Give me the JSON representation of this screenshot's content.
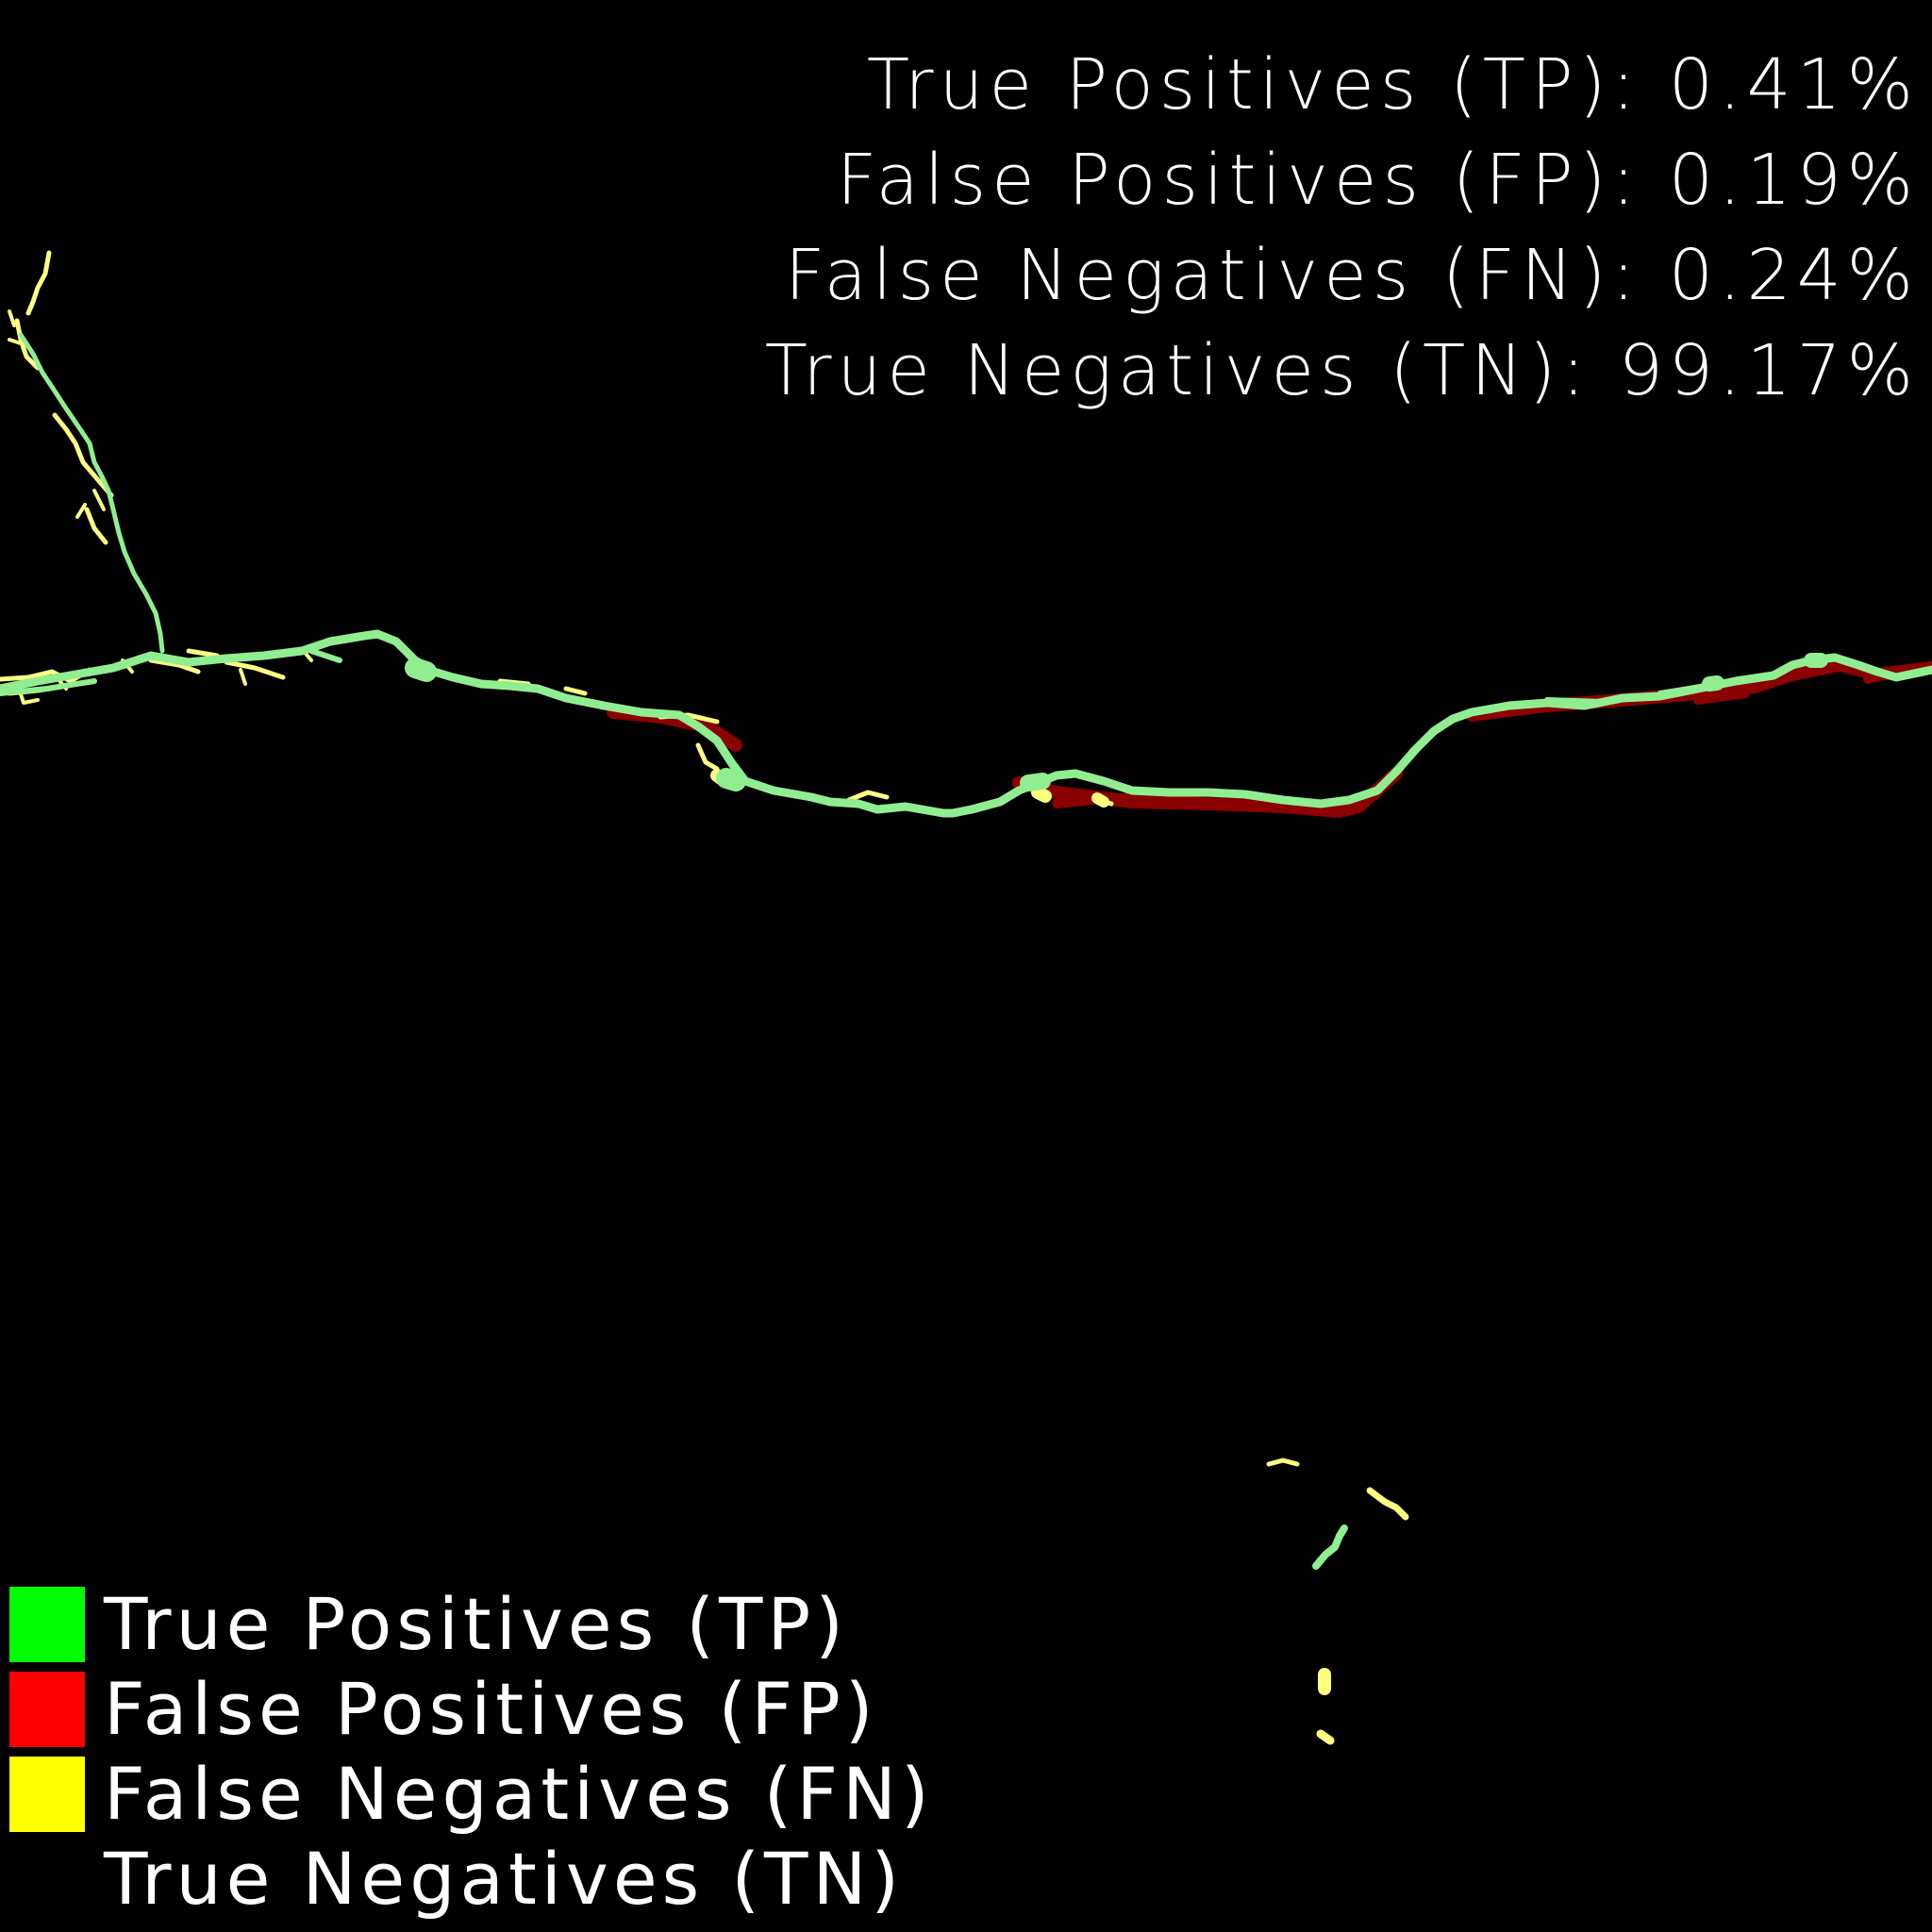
{
  "stats": [
    {
      "label": "True Positives (TP): 0.41%",
      "value": 0.41
    },
    {
      "label": "False Positives (FP): 0.19%",
      "value": 0.19
    },
    {
      "label": "False Negatives (FN): 0.24%",
      "value": 0.24
    },
    {
      "label": "True Negatives (TN): 99.17%",
      "value": 99.17
    }
  ],
  "legend": [
    {
      "label": "True Positives (TP)",
      "color": "#00ff00"
    },
    {
      "label": "False Positives (FP)",
      "color": "#ff0000"
    },
    {
      "label": "False Negatives (FN)",
      "color": "#ffff00"
    },
    {
      "label": "True Negatives (TN)",
      "color": "#000000"
    }
  ],
  "colors": {
    "background": "#000000",
    "text": "#ffffff",
    "tp_overlay": "#90ee90",
    "fp_overlay": "#8b0000",
    "fn_overlay": "#ffff80"
  }
}
